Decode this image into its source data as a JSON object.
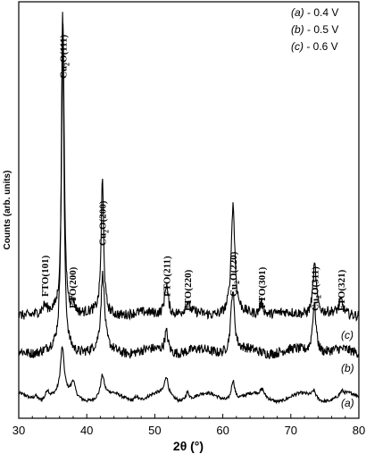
{
  "chart_data": {
    "type": "line",
    "title": "",
    "xlabel": "2θ (°)",
    "ylabel": "Counts (arb. units)",
    "xlim": [
      30,
      80
    ],
    "x_ticks": [
      30,
      40,
      50,
      60,
      70,
      80
    ],
    "grid": false,
    "legend_position": "top-right",
    "legend": [
      {
        "tag": "(a)",
        "text": "- 0.4 V"
      },
      {
        "tag": "(b)",
        "text": "- 0.5 V"
      },
      {
        "tag": "(c)",
        "text": "- 0.6 V"
      }
    ],
    "series": [
      {
        "name": "(a)",
        "baseline": 0.05,
        "noise": 0.004,
        "wave": 0.01,
        "peaks": [
          [
            32.5,
            0.012
          ],
          [
            34.2,
            0.022
          ],
          [
            36.4,
            0.11
          ],
          [
            38.0,
            0.035
          ],
          [
            42.3,
            0.05
          ],
          [
            47.3,
            0.012
          ],
          [
            51.7,
            0.045
          ],
          [
            54.8,
            0.02
          ],
          [
            61.5,
            0.05
          ],
          [
            65.8,
            0.015
          ],
          [
            73.4,
            0.018
          ],
          [
            77.5,
            0.01
          ]
        ]
      },
      {
        "name": "(b)",
        "baseline": 0.16,
        "noise": 0.012,
        "wave": 0.006,
        "peaks": [
          [
            36.45,
            0.82
          ],
          [
            42.35,
            0.18
          ],
          [
            51.7,
            0.05
          ],
          [
            61.45,
            0.15
          ],
          [
            73.45,
            0.12
          ]
        ]
      },
      {
        "name": "(c)",
        "baseline": 0.25,
        "noise": 0.012,
        "wave": 0.004,
        "peaks": [
          [
            33.8,
            0.015
          ],
          [
            36.5,
            0.71
          ],
          [
            38.0,
            0.025
          ],
          [
            42.3,
            0.32
          ],
          [
            51.7,
            0.075
          ],
          [
            54.8,
            0.025
          ],
          [
            61.5,
            0.26
          ],
          [
            65.7,
            0.03
          ],
          [
            73.5,
            0.12
          ],
          [
            77.4,
            0.03
          ]
        ]
      }
    ],
    "peak_labels": [
      {
        "text": "FTO(101)",
        "x": 33.8
      },
      {
        "text": "Cu2O(111)",
        "x": 36.5
      },
      {
        "text": "FTO(200)",
        "x": 37.9
      },
      {
        "text": "Cu2O(200)",
        "x": 42.3
      },
      {
        "text": "FTO(211)",
        "x": 51.7
      },
      {
        "text": "FTO(220)",
        "x": 54.8
      },
      {
        "text": "Cu2O(220)",
        "x": 61.5
      },
      {
        "text": "FTO(301)",
        "x": 65.7
      },
      {
        "text": "Cu2O(311)",
        "x": 73.5
      },
      {
        "text": "FTO(321)",
        "x": 77.4
      }
    ]
  }
}
